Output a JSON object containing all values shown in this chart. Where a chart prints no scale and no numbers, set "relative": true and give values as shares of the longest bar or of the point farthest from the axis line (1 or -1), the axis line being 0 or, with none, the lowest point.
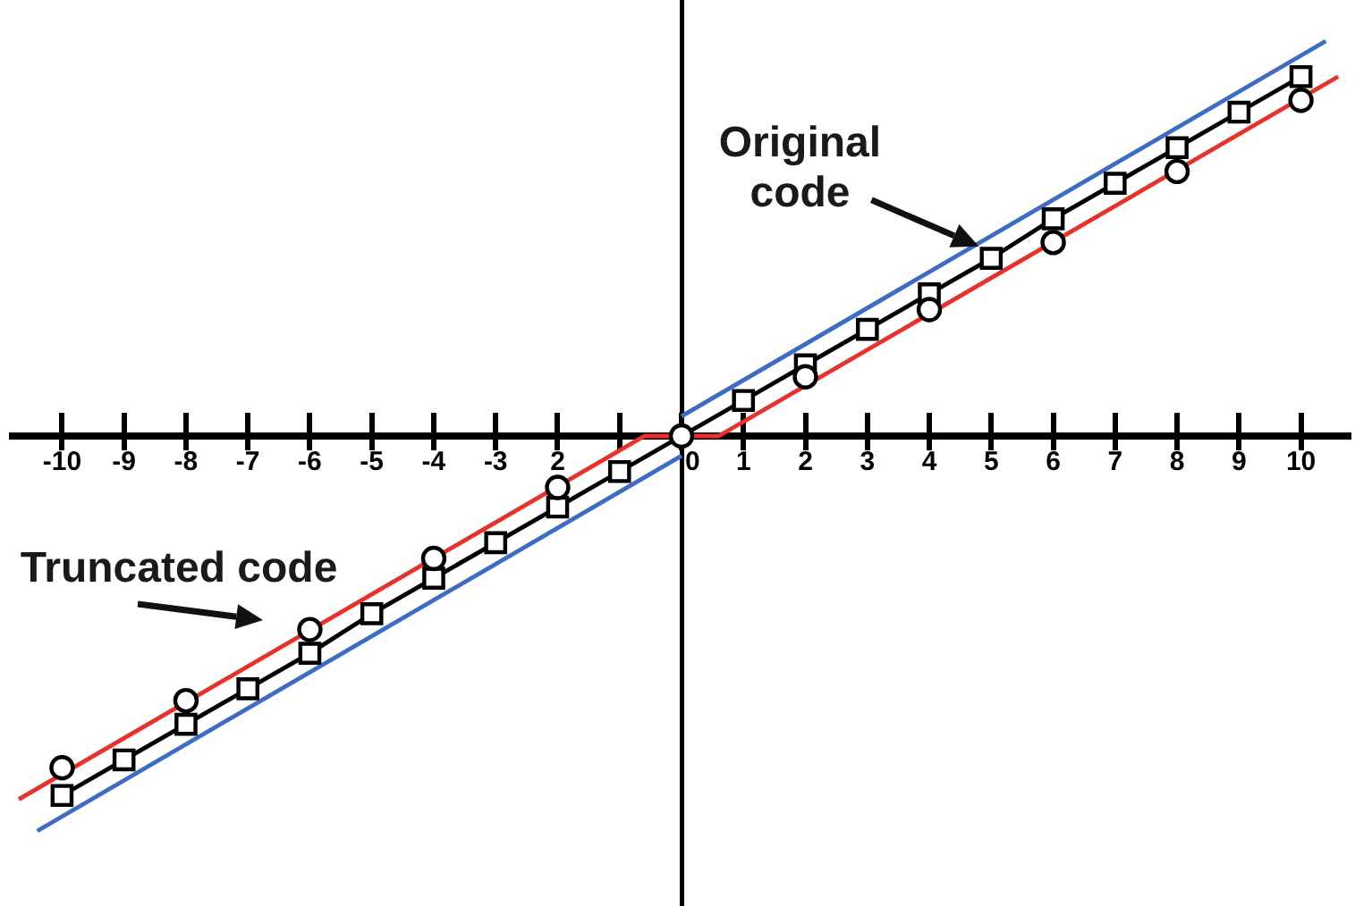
{
  "chart_data": {
    "type": "line",
    "relative": true,
    "tick_labels": "x",
    "xlim": [
      -10.8,
      10.8
    ],
    "xticks": [
      -10,
      -9,
      -8,
      -7,
      -6,
      -5,
      -4,
      -3,
      {
        "value": -2,
        "label": "2"
      },
      {
        "value": -1,
        "label": null
      },
      0,
      1,
      2,
      3,
      4,
      5,
      6,
      7,
      8,
      9,
      10
    ],
    "series": [
      {
        "color": "#3d6cc4",
        "marker": "none",
        "x": [
          -10.4,
          0
        ],
        "values": [
          -1,
          -0.05
        ]
      },
      {
        "color": "#3d6cc4",
        "marker": "none",
        "x": [
          0,
          10.4
        ],
        "values": [
          0.05,
          1
        ]
      },
      {
        "color": "#e8312a",
        "marker": "none",
        "x": [
          -10.7,
          -0.6,
          0.6,
          10.6
        ],
        "values": [
          -0.92,
          0,
          0,
          0.91
        ]
      },
      {
        "color": "#000000",
        "marker": "square",
        "x": [
          -10,
          -9,
          -8,
          -7,
          -6,
          -5,
          -4,
          -3,
          -2,
          -1,
          1,
          2,
          3,
          4,
          5,
          6,
          7,
          8,
          9,
          10
        ],
        "values": [
          -0.91,
          -0.82,
          -0.73,
          -0.64,
          -0.55,
          -0.45,
          -0.36,
          -0.27,
          -0.18,
          -0.09,
          0.09,
          0.18,
          0.27,
          0.36,
          0.45,
          0.55,
          0.64,
          0.73,
          0.82,
          0.91
        ]
      },
      {
        "type": "scatter",
        "color": "#000000",
        "marker": "circle",
        "x": [
          -10,
          -8,
          -6,
          -4,
          -2,
          0,
          2,
          4,
          6,
          8,
          10
        ],
        "values": [
          -0.84,
          -0.67,
          -0.49,
          -0.31,
          -0.13,
          0,
          0.15,
          0.32,
          0.49,
          0.67,
          0.85
        ]
      }
    ],
    "annotations": [
      {
        "text": "Original\ncode",
        "x": 4.8,
        "y": 0.48
      },
      "Truncated code"
    ]
  }
}
